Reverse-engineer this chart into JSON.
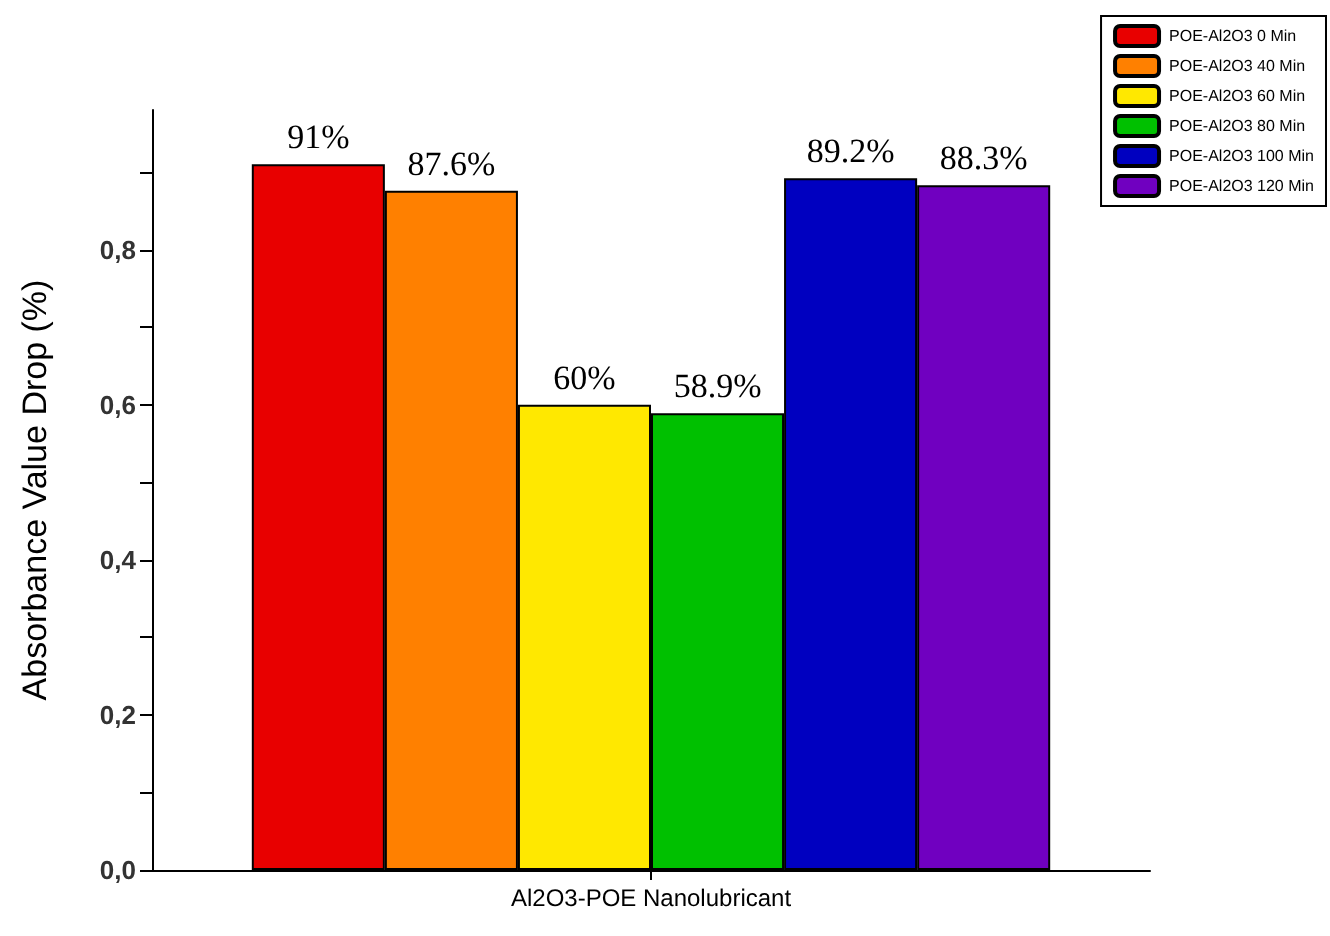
{
  "chart_data": {
    "type": "bar",
    "categories": [
      "Al2O3-POE Nanolubricant"
    ],
    "ylabel": "Absorbance Value Drop (%)",
    "ylim": [
      0,
      0.98
    ],
    "yticks": [
      {
        "value": 0,
        "label": "0,0"
      },
      {
        "value": 0.1,
        "label": null
      },
      {
        "value": 0.2,
        "label": "0,2"
      },
      {
        "value": 0.3,
        "label": null
      },
      {
        "value": 0.4,
        "label": "0,4"
      },
      {
        "value": 0.5,
        "label": null
      },
      {
        "value": 0.6,
        "label": "0,6"
      },
      {
        "value": 0.7,
        "label": null
      },
      {
        "value": 0.8,
        "label": "0,8"
      },
      {
        "value": 0.9,
        "label": null
      }
    ],
    "series": [
      {
        "name": "POE-Al2O3 0 Min",
        "color": "#e80000",
        "values": [
          0.91
        ],
        "value_labels": [
          "91%"
        ]
      },
      {
        "name": "POE-Al2O3 40 Min",
        "color": "#ff8000",
        "values": [
          0.876
        ],
        "value_labels": [
          "87.6%"
        ]
      },
      {
        "name": "POE-Al2O3 60 Min",
        "color": "#ffe800",
        "values": [
          0.6
        ],
        "value_labels": [
          "60%"
        ]
      },
      {
        "name": "POE-Al2O3 80 Min",
        "color": "#00c000",
        "values": [
          0.589
        ],
        "value_labels": [
          "58.9%"
        ]
      },
      {
        "name": "POE-Al2O3 100 Min",
        "color": "#0000c0",
        "values": [
          0.892
        ],
        "value_labels": [
          "89.2%"
        ]
      },
      {
        "name": "POE-Al2O3 120 Min",
        "color": "#7000c0",
        "values": [
          0.883
        ],
        "value_labels": [
          "88.3%"
        ]
      }
    ],
    "legend": "top right",
    "grid": false
  }
}
